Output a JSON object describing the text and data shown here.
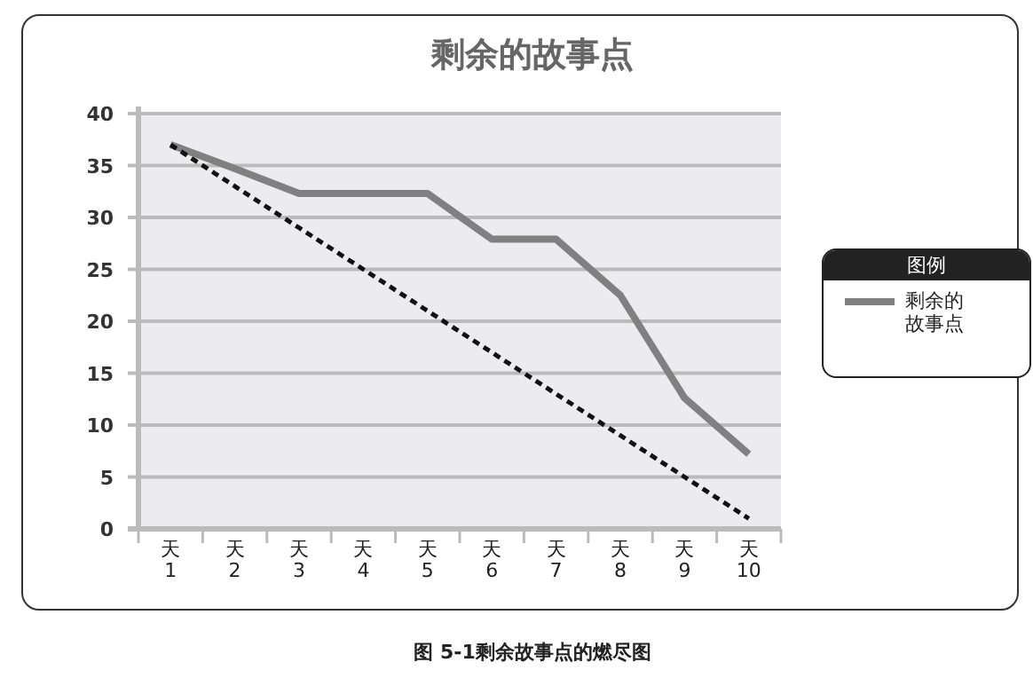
{
  "chart_data": {
    "type": "line",
    "title": "剩余的故事点",
    "legend_title": "图例",
    "annotations": [
      "图 5-1剩余故事点的燃尽图"
    ],
    "categories": [
      "天 1",
      "天 2",
      "天 3",
      "天 4",
      "天 5",
      "天 6",
      "天 7",
      "天 8",
      "天 9",
      "天 10"
    ],
    "series": [
      {
        "name": "剩余的故事点",
        "color": "#808080",
        "values": [
          37,
          34.7,
          32.3,
          32.3,
          32.3,
          27.9,
          27.9,
          22.5,
          12.6,
          7.2
        ]
      },
      {
        "color": "#111111",
        "line_style": "dashed",
        "values": [
          37,
          33,
          29,
          25,
          21,
          17,
          13,
          9,
          5,
          1
        ]
      }
    ],
    "ylim": [
      0,
      40
    ],
    "yticks": [
      0,
      5,
      10,
      15,
      20,
      25,
      30,
      35,
      40
    ],
    "grid": "y",
    "legend": "right",
    "marker": "none",
    "line_style": "solid"
  }
}
